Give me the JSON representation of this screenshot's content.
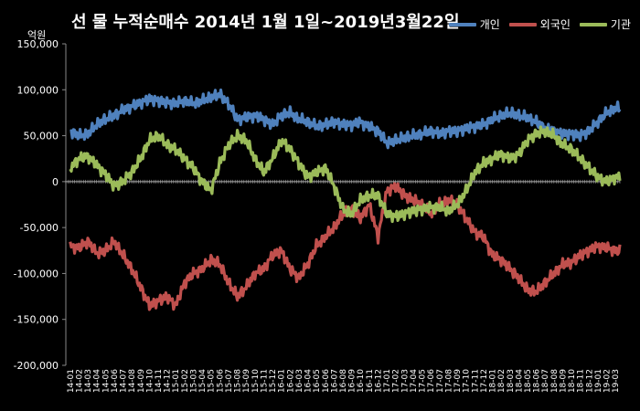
{
  "chart_data": {
    "type": "line",
    "title": "선 물 누적순매수 2014년 1월 1일~2019년3월22일",
    "unit": "억원",
    "ylim": [
      -200000,
      150000
    ],
    "yticks": [
      "150,000",
      "100,000",
      "50,000",
      "0",
      "-50,000",
      "-100,000",
      "-150,000",
      "-200,000"
    ],
    "ytick_values": [
      150000,
      100000,
      50000,
      0,
      -50000,
      -100000,
      -150000,
      -200000
    ],
    "categories": [
      "14-01",
      "14-02",
      "14-03",
      "14-04",
      "14-05",
      "14-06",
      "14-07",
      "14-08",
      "14-09",
      "14-10",
      "14-11",
      "14-12",
      "15-01",
      "15-02",
      "15-03",
      "15-04",
      "15-05",
      "15-06",
      "15-07",
      "15-08",
      "15-09",
      "15-10",
      "15-11",
      "15-12",
      "16-01",
      "16-02",
      "16-03",
      "16-04",
      "16-05",
      "16-06",
      "16-07",
      "16-08",
      "16-09",
      "16-10",
      "16-11",
      "16-12",
      "17-01",
      "17-02",
      "17-03",
      "17-04",
      "17-05",
      "17-06",
      "17-07",
      "17-08",
      "17-09",
      "17-10",
      "17-11",
      "17-12",
      "18-01",
      "18-02",
      "18-03",
      "18-04",
      "18-05",
      "18-06",
      "18-07",
      "18-08",
      "18-09",
      "18-10",
      "18-11",
      "18-12",
      "19-01",
      "19-02",
      "19-03"
    ],
    "legend_position": "top-right",
    "grid": false,
    "series": [
      {
        "name": "개인",
        "color": "#4F81BD",
        "values": [
          55000,
          50000,
          52000,
          62000,
          68000,
          72000,
          78000,
          82000,
          86000,
          90000,
          88000,
          86000,
          85000,
          88000,
          85000,
          88000,
          92000,
          95000,
          85000,
          68000,
          70000,
          72000,
          68000,
          62000,
          72000,
          75000,
          68000,
          65000,
          60000,
          62000,
          65000,
          62000,
          62000,
          65000,
          60000,
          55000,
          42000,
          45000,
          48000,
          50000,
          52000,
          55000,
          52000,
          55000,
          55000,
          58000,
          60000,
          62000,
          68000,
          72000,
          75000,
          72000,
          70000,
          65000,
          58000,
          55000,
          52000,
          52000,
          50000,
          55000,
          65000,
          75000,
          80000
        ]
      },
      {
        "name": "외국인",
        "color": "#C0504D",
        "values": [
          -70000,
          -72000,
          -65000,
          -78000,
          -75000,
          -65000,
          -80000,
          -95000,
          -115000,
          -135000,
          -130000,
          -125000,
          -135000,
          -110000,
          -100000,
          -95000,
          -85000,
          -90000,
          -110000,
          -125000,
          -115000,
          -100000,
          -95000,
          -80000,
          -75000,
          -95000,
          -105000,
          -90000,
          -70000,
          -60000,
          -50000,
          -35000,
          -30000,
          -40000,
          -25000,
          -60000,
          -10000,
          -5000,
          -15000,
          -20000,
          -25000,
          -35000,
          -25000,
          -20000,
          -25000,
          -40000,
          -55000,
          -60000,
          -80000,
          -85000,
          -95000,
          -105000,
          -118000,
          -120000,
          -110000,
          -100000,
          -90000,
          -88000,
          -80000,
          -75000,
          -70000,
          -72000,
          -75000
        ]
      },
      {
        "name": "기관",
        "color": "#9BBB59",
        "values": [
          15000,
          25000,
          28000,
          18000,
          8000,
          -5000,
          0,
          10000,
          25000,
          45000,
          50000,
          40000,
          35000,
          25000,
          15000,
          0,
          -10000,
          20000,
          40000,
          50000,
          45000,
          25000,
          10000,
          25000,
          45000,
          35000,
          20000,
          5000,
          10000,
          15000,
          -5000,
          -30000,
          -35000,
          -20000,
          -15000,
          -15000,
          -35000,
          -38000,
          -35000,
          -32000,
          -30000,
          -28000,
          -28000,
          -32000,
          -25000,
          -10000,
          10000,
          20000,
          25000,
          30000,
          25000,
          30000,
          45000,
          52000,
          55000,
          50000,
          40000,
          35000,
          25000,
          15000,
          5000,
          0,
          5000
        ]
      }
    ]
  }
}
